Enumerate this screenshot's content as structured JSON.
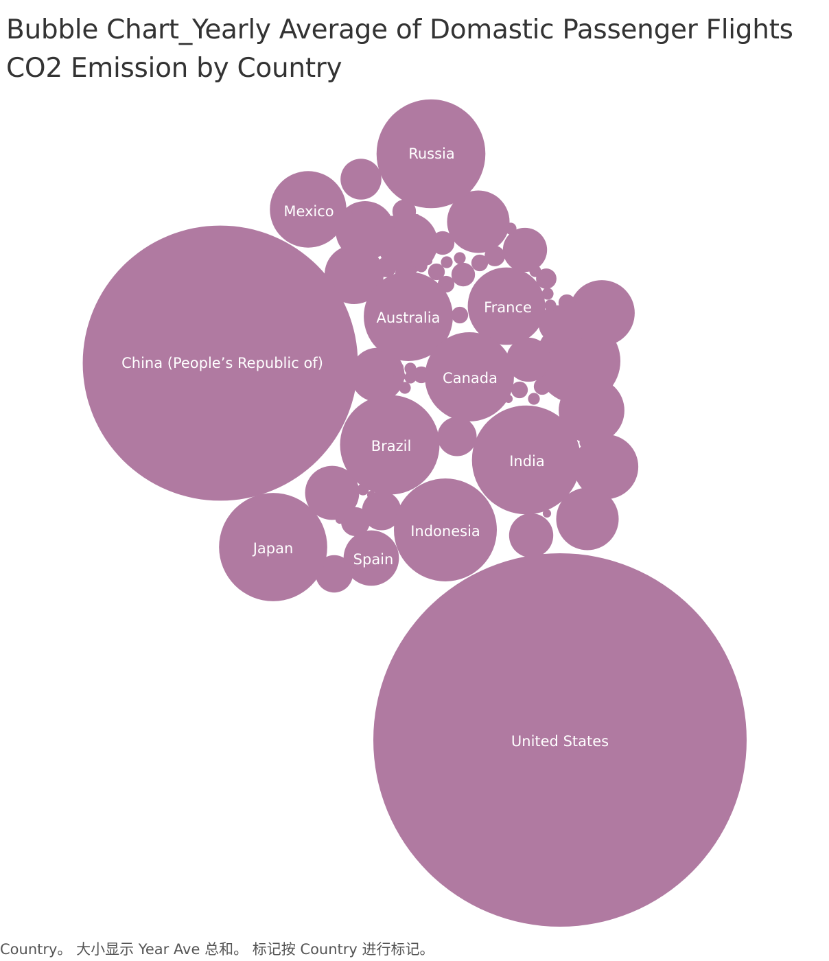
{
  "chart_data": {
    "type": "bubble",
    "title": "Bubble Chart_Yearly Average of Domastic Passenger Flights CO2 Emission by Country",
    "size_measure": "Year Ave",
    "label_field": "Country",
    "legend": "none",
    "grid": false,
    "color": "#b07aa1",
    "labeled_bubbles": [
      {
        "name": "United States",
        "relative_size": 1.0
      },
      {
        "name": "China (People’s Republic of)",
        "relative_size": 0.543
      },
      {
        "name": "Russia",
        "relative_size": 0.085
      },
      {
        "name": "Australia",
        "relative_size": 0.057
      },
      {
        "name": "France",
        "relative_size": 0.043
      },
      {
        "name": "Canada",
        "relative_size": 0.057
      },
      {
        "name": "Brazil",
        "relative_size": 0.071
      },
      {
        "name": "India",
        "relative_size": 0.085
      },
      {
        "name": "Indonesia",
        "relative_size": 0.076
      },
      {
        "name": "Japan",
        "relative_size": 0.084
      },
      {
        "name": "Mexico",
        "relative_size": 0.042
      },
      {
        "name": "Spain",
        "relative_size": 0.022
      }
    ],
    "unlabeled_relative_sizes": [
      0.052,
      0.031,
      0.031,
      0.03,
      0.028,
      0.028,
      0.026,
      0.025,
      0.025,
      0.021,
      0.021,
      0.014,
      0.014,
      0.014,
      0.012,
      0.011,
      0.011,
      0.01,
      0.01,
      0.006,
      0.004,
      0.004,
      0.004,
      0.003,
      0.003,
      0.003,
      0.002,
      0.002,
      0.002,
      0.002,
      0.002,
      0.002,
      0.002,
      0.002,
      0.001,
      0.001,
      0.001,
      0.001,
      0.001,
      0.001,
      0.001,
      0.001,
      0.001,
      0.001,
      0.001,
      0.001,
      0.001,
      0.001,
      0.001,
      0.0005,
      0.0005,
      0.0005,
      0.0005,
      0.0005,
      0.0005,
      0.0005,
      0.0005,
      0.0005,
      0.0005,
      0.0005
    ]
  },
  "footer": {
    "caption": "Country。 大小显示 Year Ave 总和。 标记按 Country 进行标记。"
  }
}
